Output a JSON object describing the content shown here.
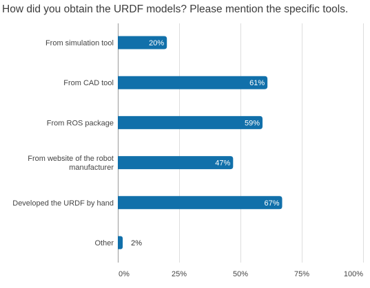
{
  "chart_data": {
    "type": "bar",
    "orientation": "horizontal",
    "title": "How did you obtain the URDF models? Please mention the specific tools.",
    "categories": [
      [
        "From simulation tool"
      ],
      [
        "From CAD tool"
      ],
      [
        "From ROS package"
      ],
      [
        "From website of the robot",
        "manufacturer"
      ],
      [
        "Developed the URDF by hand"
      ],
      [
        "Other"
      ]
    ],
    "values": [
      20,
      61,
      59,
      47,
      67,
      2
    ],
    "value_labels": [
      "20%",
      "61%",
      "59%",
      "47%",
      "67%",
      "2%"
    ],
    "xlim": [
      0,
      100
    ],
    "x_ticks": [
      0,
      25,
      50,
      75,
      100
    ],
    "x_tick_labels": [
      "0%",
      "25%",
      "50%",
      "75%",
      "100%"
    ],
    "grid": "vertical",
    "bar_color": "#1170aa",
    "label_color_inside": "#ffffff",
    "label_color_outside": "#333333",
    "text_color": "#444444",
    "grid_color": "#dddddd"
  }
}
